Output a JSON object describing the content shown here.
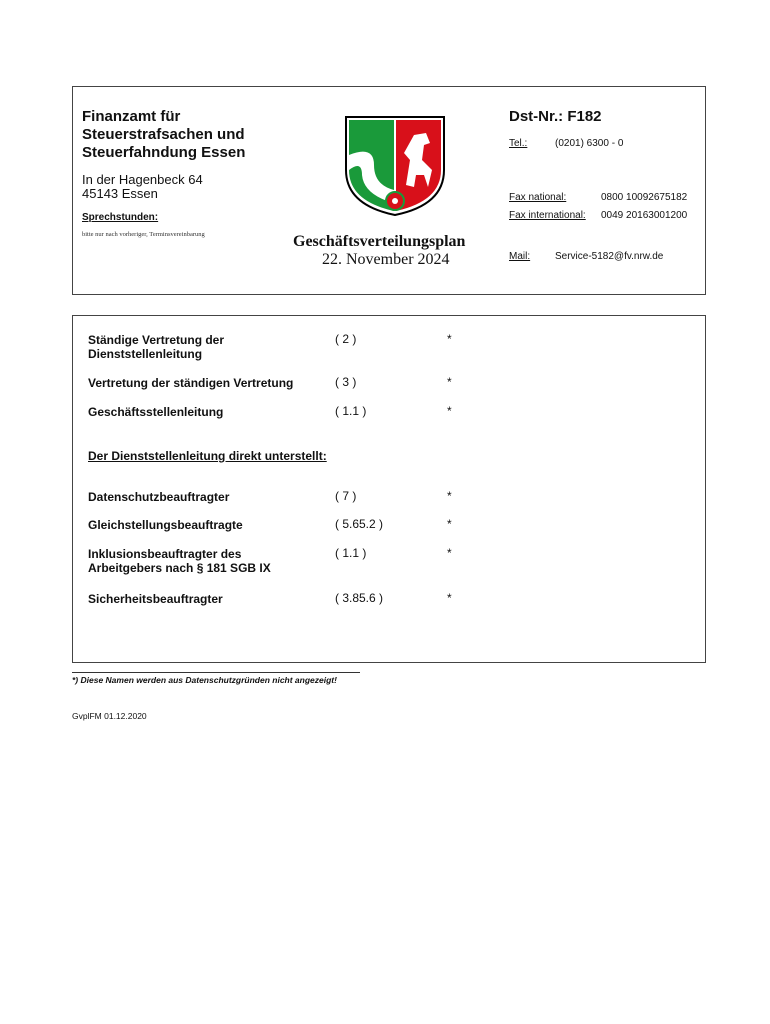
{
  "header": {
    "office_name": [
      "Finanzamt für",
      "Steuerstrafsachen und",
      "Steuerfahndung Essen"
    ],
    "address": [
      "In der Hagenbeck 64",
      "45143 Essen"
    ],
    "office_hours_label": "Sprechstunden:",
    "office_hours_text": "bitte nur nach vorheriger, Terminsvereinbarung",
    "title": "Geschäftsverteilungsplan",
    "date": "22. November 2024",
    "dst_nr": "Dst-Nr.: F182",
    "tel_label": "Tel.:",
    "tel": "(0201) 6300 - 0",
    "fax_national_label": "Fax national:",
    "fax_national": "0800 10092675182",
    "fax_international_label": "Fax international:",
    "fax_international": "0049 20163001200",
    "mail_label": "Mail:",
    "mail": "Service-5182@fv.nrw.de",
    "coat_of_arms": "NRW coat of arms"
  },
  "rows_top": [
    {
      "label": [
        "Ständige Vertretung der",
        "Dienststellenleitung"
      ],
      "code": "( 2 )",
      "name": "*"
    },
    {
      "label": [
        "Vertretung der ständigen Vertretung"
      ],
      "code": "( 3 )",
      "name": "*"
    },
    {
      "label": [
        "Geschäftsstellenleitung"
      ],
      "code": "( 1.1 )",
      "name": "*"
    }
  ],
  "section_heading": "Der Dienststellenleitung direkt unterstellt:",
  "rows_sub": [
    {
      "label": [
        "Datenschutzbeauftragter"
      ],
      "code": "( 7 )",
      "name": "*"
    },
    {
      "label": [
        "Gleichstellungsbeauftragte"
      ],
      "code": "( 5.65.2 )",
      "name": "*"
    },
    {
      "label": [
        "Inklusionsbeauftragter des",
        "Arbeitgebers nach § 181 SGB IX"
      ],
      "code": "( 1.1 )",
      "name": "*"
    },
    {
      "label": [
        "Sicherheitsbeauftragter"
      ],
      "code": "( 3.85.6 )",
      "name": "*"
    }
  ],
  "footnote": "*) Diese Namen werden aus Datenschutzgründen nicht angezeigt!",
  "form_id": "GvplFM 01.12.2020"
}
